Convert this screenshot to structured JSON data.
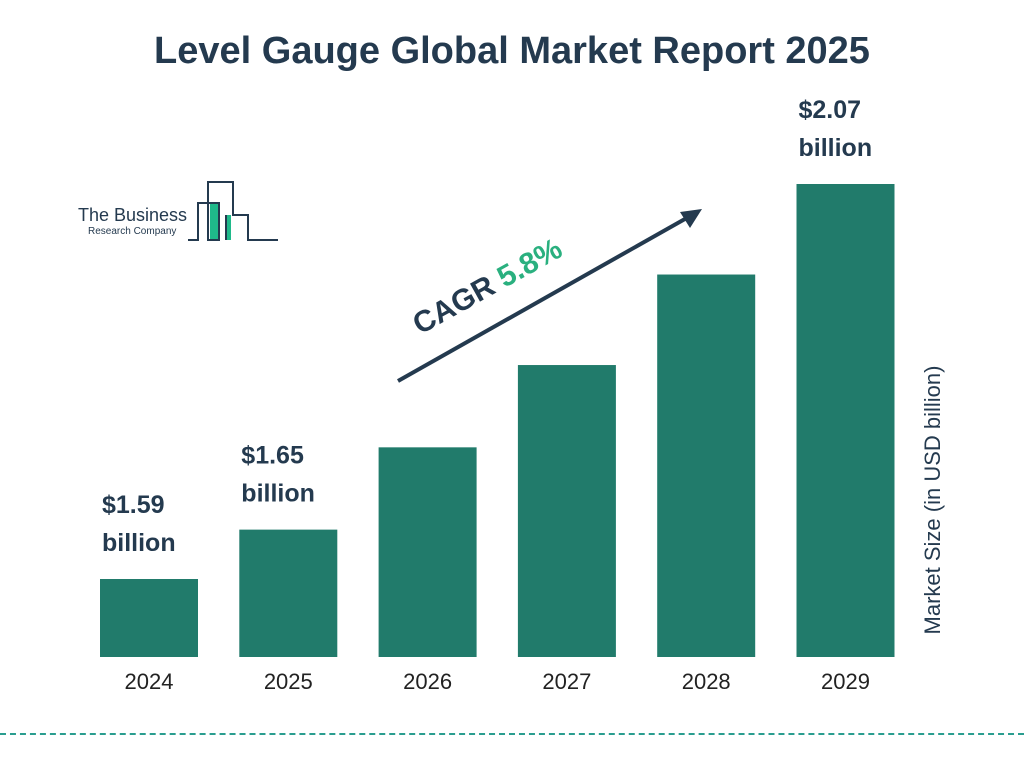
{
  "title": "Level Gauge Global Market Report 2025",
  "logo": {
    "line1": "The Business",
    "line2": "Research Company"
  },
  "chart_data": {
    "type": "bar",
    "title": "Level Gauge Global Market Report 2025",
    "ylabel": "Market Size (in USD billion)",
    "xlabel": "",
    "categories": [
      "2024",
      "2025",
      "2026",
      "2027",
      "2028",
      "2029"
    ],
    "values": [
      1.59,
      1.65,
      1.75,
      1.85,
      1.96,
      2.07
    ],
    "data_labels": [
      {
        "index": 0,
        "line1": "$1.59",
        "line2": "billion"
      },
      {
        "index": 1,
        "line1": "$1.65",
        "line2": "billion"
      },
      {
        "index": 5,
        "line1": "$2.07",
        "line2": "billion"
      }
    ],
    "annotation": {
      "prefix": "CAGR",
      "value": "5.8%"
    },
    "colors": {
      "bar": "#217b6b",
      "text": "#243a4f",
      "cagr": "#2ab07f"
    },
    "grid": false
  }
}
